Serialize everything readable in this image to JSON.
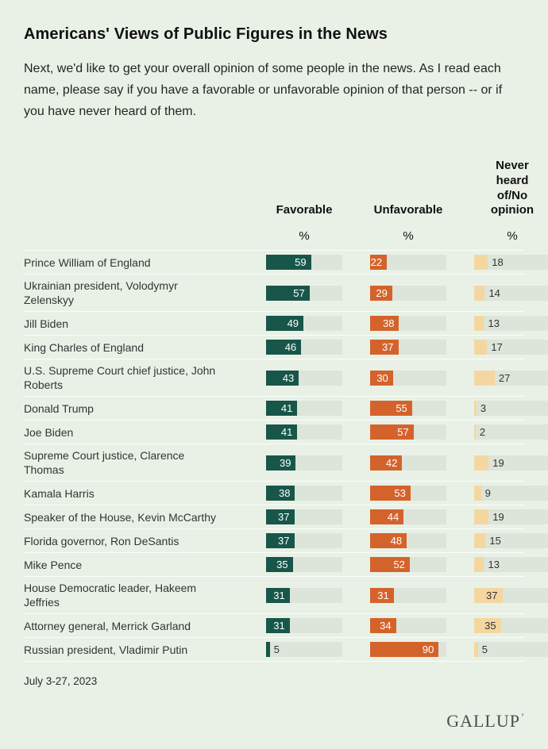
{
  "page": {
    "title": "Americans' Views of Public Figures in the News",
    "subtitle": "Next, we'd like to get your overall opinion of some people in the news. As I read each name, please say if you have a favorable or unfavorable opinion of that person -- or if you have never heard of them.",
    "date_note": "July 3-27, 2023",
    "brand": "GALLUP",
    "brand_mark": "’"
  },
  "chart_data": {
    "type": "bar",
    "orientation": "horizontal",
    "title": "Americans' Views of Public Figures in the News",
    "xlim": [
      0,
      100
    ],
    "unit": "%",
    "track_color": "#dde4d9",
    "background_color": "#e9f1e6",
    "columns": [
      {
        "key": "favorable",
        "label": "Favorable",
        "unit": "%",
        "color": "#18564a"
      },
      {
        "key": "unfavorable",
        "label": "Unfavorable",
        "unit": "%",
        "color": "#d4632b"
      },
      {
        "key": "never_heard",
        "label": "Never heard of/No opinion",
        "unit": "%",
        "color": "#f4d7a0"
      }
    ],
    "rows": [
      {
        "name": "Prince William of England",
        "favorable": 59,
        "unfavorable": 22,
        "never_heard": 18
      },
      {
        "name": "Ukrainian president, Volodymyr Zelenskyy",
        "favorable": 57,
        "unfavorable": 29,
        "never_heard": 14
      },
      {
        "name": "Jill Biden",
        "favorable": 49,
        "unfavorable": 38,
        "never_heard": 13
      },
      {
        "name": "King Charles of England",
        "favorable": 46,
        "unfavorable": 37,
        "never_heard": 17
      },
      {
        "name": "U.S. Supreme Court chief justice, John Roberts",
        "favorable": 43,
        "unfavorable": 30,
        "never_heard": 27
      },
      {
        "name": "Donald Trump",
        "favorable": 41,
        "unfavorable": 55,
        "never_heard": 3
      },
      {
        "name": "Joe Biden",
        "favorable": 41,
        "unfavorable": 57,
        "never_heard": 2
      },
      {
        "name": "Supreme Court justice, Clarence Thomas",
        "favorable": 39,
        "unfavorable": 42,
        "never_heard": 19
      },
      {
        "name": "Kamala Harris",
        "favorable": 38,
        "unfavorable": 53,
        "never_heard": 9
      },
      {
        "name": "Speaker of the House, Kevin McCarthy",
        "favorable": 37,
        "unfavorable": 44,
        "never_heard": 19
      },
      {
        "name": "Florida governor, Ron DeSantis",
        "favorable": 37,
        "unfavorable": 48,
        "never_heard": 15
      },
      {
        "name": "Mike Pence",
        "favorable": 35,
        "unfavorable": 52,
        "never_heard": 13
      },
      {
        "name": "House Democratic leader, Hakeem Jeffries",
        "favorable": 31,
        "unfavorable": 31,
        "never_heard": 37
      },
      {
        "name": "Attorney general, Merrick Garland",
        "favorable": 31,
        "unfavorable": 34,
        "never_heard": 35
      },
      {
        "name": "Russian president, Vladimir Putin",
        "favorable": 5,
        "unfavorable": 90,
        "never_heard": 5
      }
    ]
  }
}
